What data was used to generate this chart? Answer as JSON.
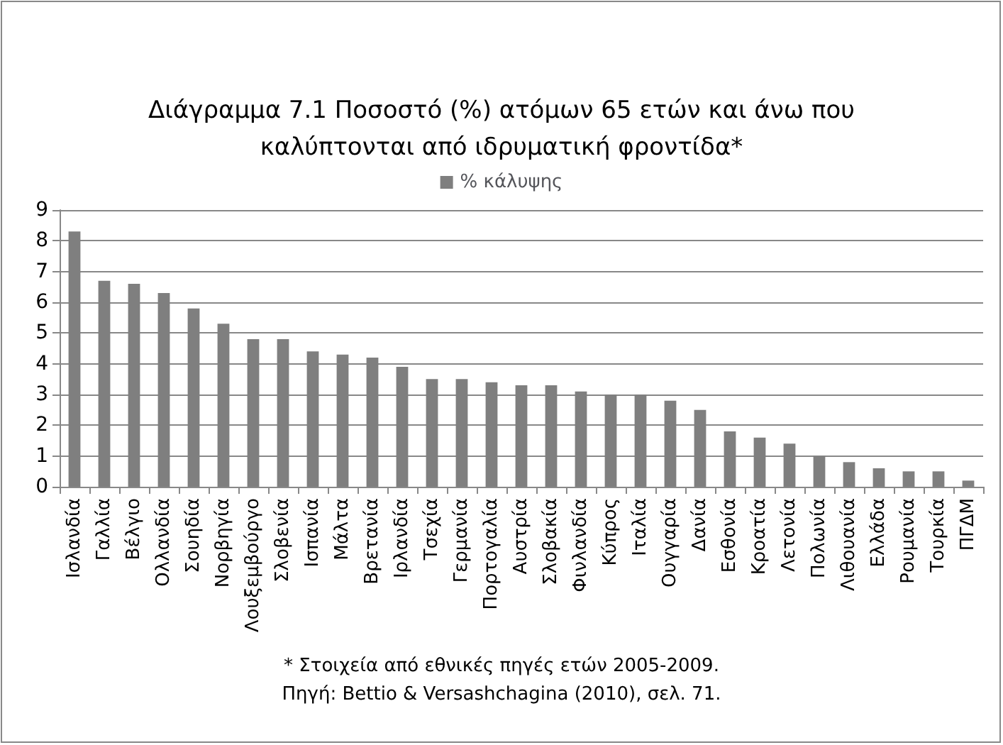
{
  "chart_data": {
    "type": "bar",
    "title": "Διάγραμμα 7.1 Ποσοστό (%) ατόμων 65 ετών και άνω που\nκαλύπτονται από ιδρυματική φροντίδα*",
    "categories": [
      "Ισλανδία",
      "Γαλλία",
      "Βέλγιο",
      "Ολλανδία",
      "Σουηδία",
      "Νορβηγία",
      "Λουξεμβούργο",
      "Σλοβενία",
      "Ισπανία",
      "Μάλτα",
      "Βρετανία",
      "Ιρλανδία",
      "Τσεχία",
      "Γερμανία",
      "Πορτογαλία",
      "Αυστρία",
      "Σλοβακία",
      "Φινλανδία",
      "Κύπρος",
      "Ιταλία",
      "Ουγγαρία",
      "Δανία",
      "Εσθονία",
      "Κροατία",
      "Λετονία",
      "Πολωνία",
      "Λιθουανία",
      "Ελλάδα",
      "Ρουμανία",
      "Τουρκία",
      "ΠΓΔΜ"
    ],
    "series": [
      {
        "name": "% κάλυψης",
        "color": "#7f7f7f",
        "values": [
          8.3,
          6.7,
          6.6,
          6.3,
          5.8,
          5.3,
          4.8,
          4.8,
          4.4,
          4.3,
          4.2,
          3.9,
          3.5,
          3.5,
          3.4,
          3.3,
          3.3,
          3.1,
          3.0,
          3.0,
          2.8,
          2.5,
          1.8,
          1.6,
          1.4,
          1.0,
          0.8,
          0.6,
          0.5,
          0.5,
          0.2
        ]
      }
    ],
    "ylim": [
      0,
      9
    ],
    "yticks": [
      0,
      1,
      2,
      3,
      4,
      5,
      6,
      7,
      8,
      9
    ],
    "grid": "y",
    "legend": "top",
    "annotations": [
      "* Στοιχεία από εθνικές πηγές ετών 2005-2009.",
      "Πηγή: Bettio & Versashchagina (2010), σελ. 71."
    ]
  }
}
